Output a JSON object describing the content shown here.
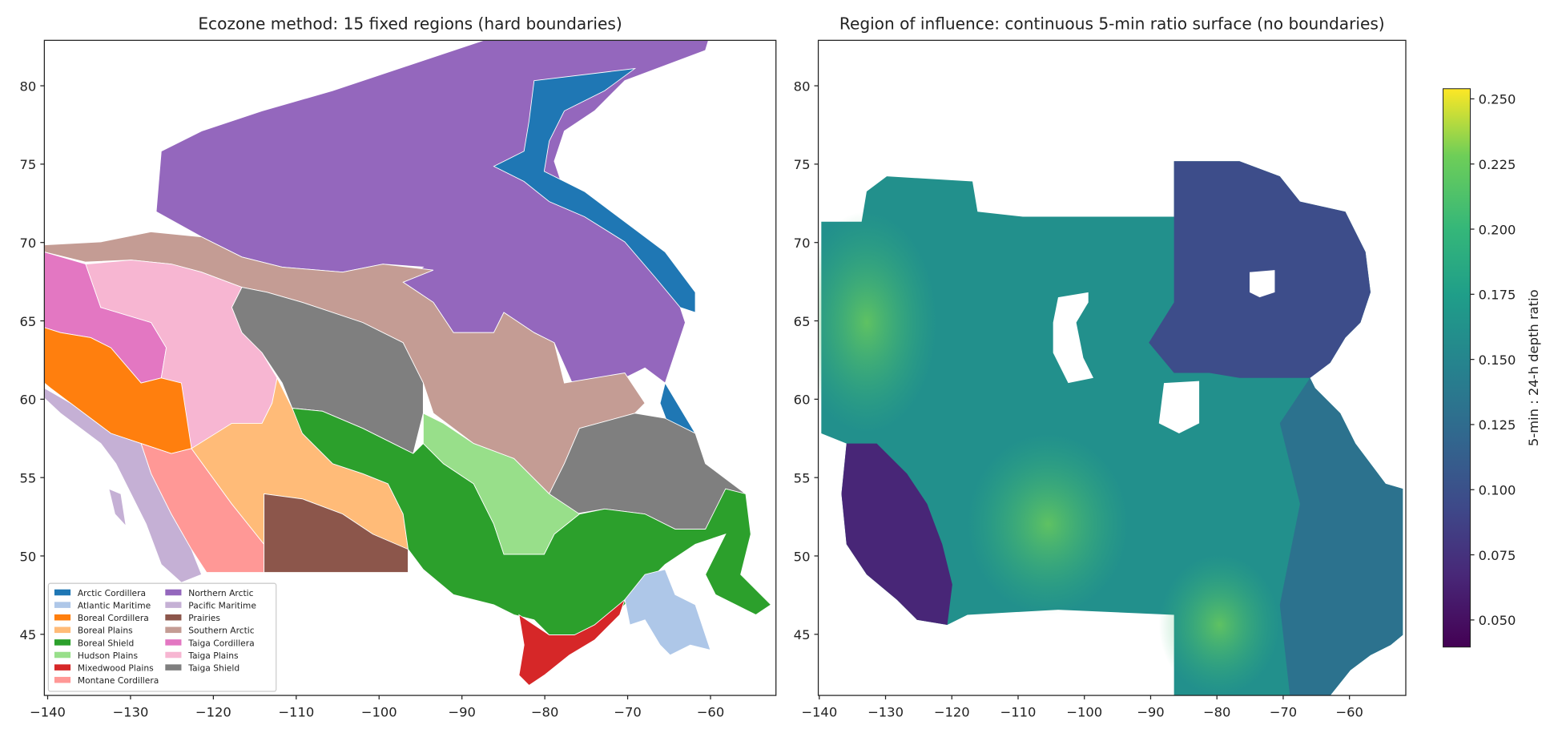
{
  "chart_data": [
    {
      "type": "map",
      "title": "Ecozone method: 15 fixed regions (hard boundaries)",
      "xlim": [
        -140.4,
        -52.1
      ],
      "ylim": [
        41.1,
        82.9
      ],
      "xticks": [
        {
          "value": -140,
          "label": "−140"
        },
        {
          "value": -130,
          "label": "−130"
        },
        {
          "value": -120,
          "label": "−120"
        },
        {
          "value": -110,
          "label": "−110"
        },
        {
          "value": -100,
          "label": "−100"
        },
        {
          "value": -90,
          "label": "−90"
        },
        {
          "value": -80,
          "label": "−80"
        },
        {
          "value": -70,
          "label": "−70"
        },
        {
          "value": -60,
          "label": "−60"
        }
      ],
      "yticks": [
        45,
        50,
        55,
        60,
        65,
        70,
        75,
        80
      ],
      "legend_position": "lower left",
      "legend": [
        {
          "name": "Arctic Cordillera",
          "color": "#1f77b4"
        },
        {
          "name": "Atlantic Maritime",
          "color": "#aec7e8"
        },
        {
          "name": "Boreal Cordillera",
          "color": "#ff7f0e"
        },
        {
          "name": "Boreal Plains",
          "color": "#ffbb78"
        },
        {
          "name": "Boreal Shield",
          "color": "#2ca02c"
        },
        {
          "name": "Hudson Plains",
          "color": "#98df8a"
        },
        {
          "name": "Mixedwood Plains",
          "color": "#d62728"
        },
        {
          "name": "Montane Cordillera",
          "color": "#ff9896"
        },
        {
          "name": "Northern Arctic",
          "color": "#9467bd"
        },
        {
          "name": "Pacific Maritime",
          "color": "#c5b0d5"
        },
        {
          "name": "Prairies",
          "color": "#8c564b"
        },
        {
          "name": "Southern Arctic",
          "color": "#c49c94"
        },
        {
          "name": "Taiga Cordillera",
          "color": "#e377c2"
        },
        {
          "name": "Taiga Plains",
          "color": "#f7b6d2"
        },
        {
          "name": "Taiga Shield",
          "color": "#7f7f7f"
        }
      ]
    },
    {
      "type": "heatmap",
      "title": "Region of influence: continuous 5-min ratio surface (no boundaries)",
      "xlim": [
        -140.15,
        -51.5
      ],
      "ylim": [
        41.1,
        82.9
      ],
      "xticks": [
        {
          "value": -140,
          "label": "−140"
        },
        {
          "value": -130,
          "label": "−130"
        },
        {
          "value": -120,
          "label": "−120"
        },
        {
          "value": -110,
          "label": "−110"
        },
        {
          "value": -100,
          "label": "−100"
        },
        {
          "value": -90,
          "label": "−90"
        },
        {
          "value": -80,
          "label": "−80"
        },
        {
          "value": -70,
          "label": "−70"
        },
        {
          "value": -60,
          "label": "−60"
        }
      ],
      "yticks": [
        45,
        50,
        55,
        60,
        65,
        70,
        75,
        80
      ],
      "colorbar": {
        "label": "5-min : 24-h depth ratio",
        "colormap": "viridis",
        "clim": [
          0.0396,
          0.2539
        ],
        "ticks": [
          {
            "value": 0.05,
            "label": "0.050"
          },
          0.075,
          {
            "value": 0.1,
            "label": "0.100"
          },
          0.125,
          {
            "value": 0.15,
            "label": "0.150"
          },
          0.175,
          {
            "value": 0.2,
            "label": "0.200"
          },
          0.225,
          {
            "value": 0.25,
            "label": "0.250"
          }
        ]
      }
    }
  ]
}
